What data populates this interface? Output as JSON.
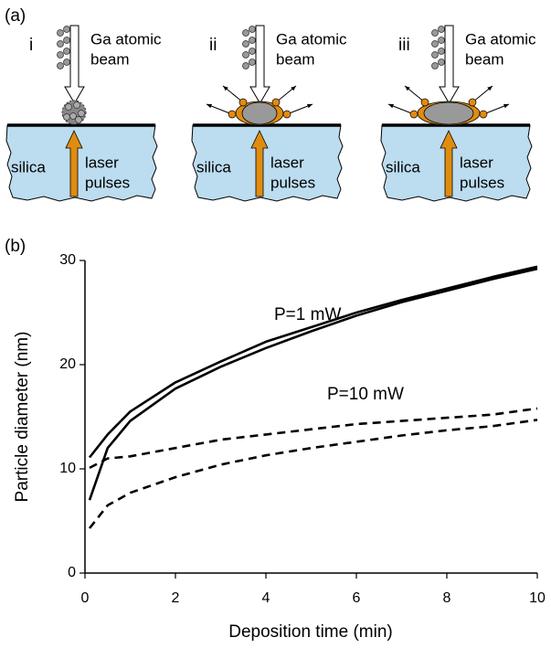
{
  "panel_a": {
    "label": "(a)",
    "panels": [
      {
        "numeral": "i",
        "beam": [
          "Ga atomic",
          "beam"
        ],
        "substrate": "silica",
        "laser": [
          "laser",
          "pulses"
        ]
      },
      {
        "numeral": "ii",
        "beam": [
          "Ga atomic",
          "beam"
        ],
        "substrate": "silica",
        "laser": [
          "laser",
          "pulses"
        ]
      },
      {
        "numeral": "iii",
        "beam": [
          "Ga atomic",
          "beam"
        ],
        "substrate": "silica",
        "laser": [
          "laser",
          "pulses"
        ]
      }
    ]
  },
  "chart_data": {
    "type": "line",
    "label": "(b)",
    "x_label": "Deposition time (min)",
    "y_label": "Particle diameter (nm)",
    "annotations": [
      "P=1 mW",
      "P=10 mW"
    ],
    "x": [
      0.1,
      0.5,
      1,
      2,
      3,
      4,
      5,
      6,
      7,
      8,
      9,
      10
    ],
    "series": [
      {
        "color": "#000000",
        "style": "solid",
        "values": [
          11.1,
          13.3,
          15.5,
          18.3,
          20.3,
          22.2,
          23.6,
          25.0,
          26.2,
          27.3,
          28.4,
          29.4
        ]
      },
      {
        "color": "#000000",
        "style": "solid",
        "values": [
          7.0,
          12.0,
          14.6,
          17.7,
          19.8,
          21.6,
          23.2,
          24.7,
          26.0,
          27.1,
          28.2,
          29.2
        ]
      },
      {
        "color": "#000000",
        "style": "dashed",
        "values": [
          10.1,
          11.0,
          11.2,
          12.0,
          12.8,
          13.3,
          13.8,
          14.3,
          14.6,
          14.9,
          15.2,
          15.8
        ]
      },
      {
        "color": "#000000",
        "style": "dashed",
        "values": [
          4.3,
          6.5,
          7.7,
          9.2,
          10.4,
          11.3,
          12.0,
          12.6,
          13.2,
          13.7,
          14.1,
          14.7
        ]
      }
    ],
    "xlim": [
      0,
      10
    ],
    "xticks": [
      0,
      2,
      4,
      6,
      8,
      10
    ],
    "ylim": [
      0,
      30
    ],
    "yticks": [
      0,
      10,
      20,
      30
    ],
    "grid": false
  }
}
